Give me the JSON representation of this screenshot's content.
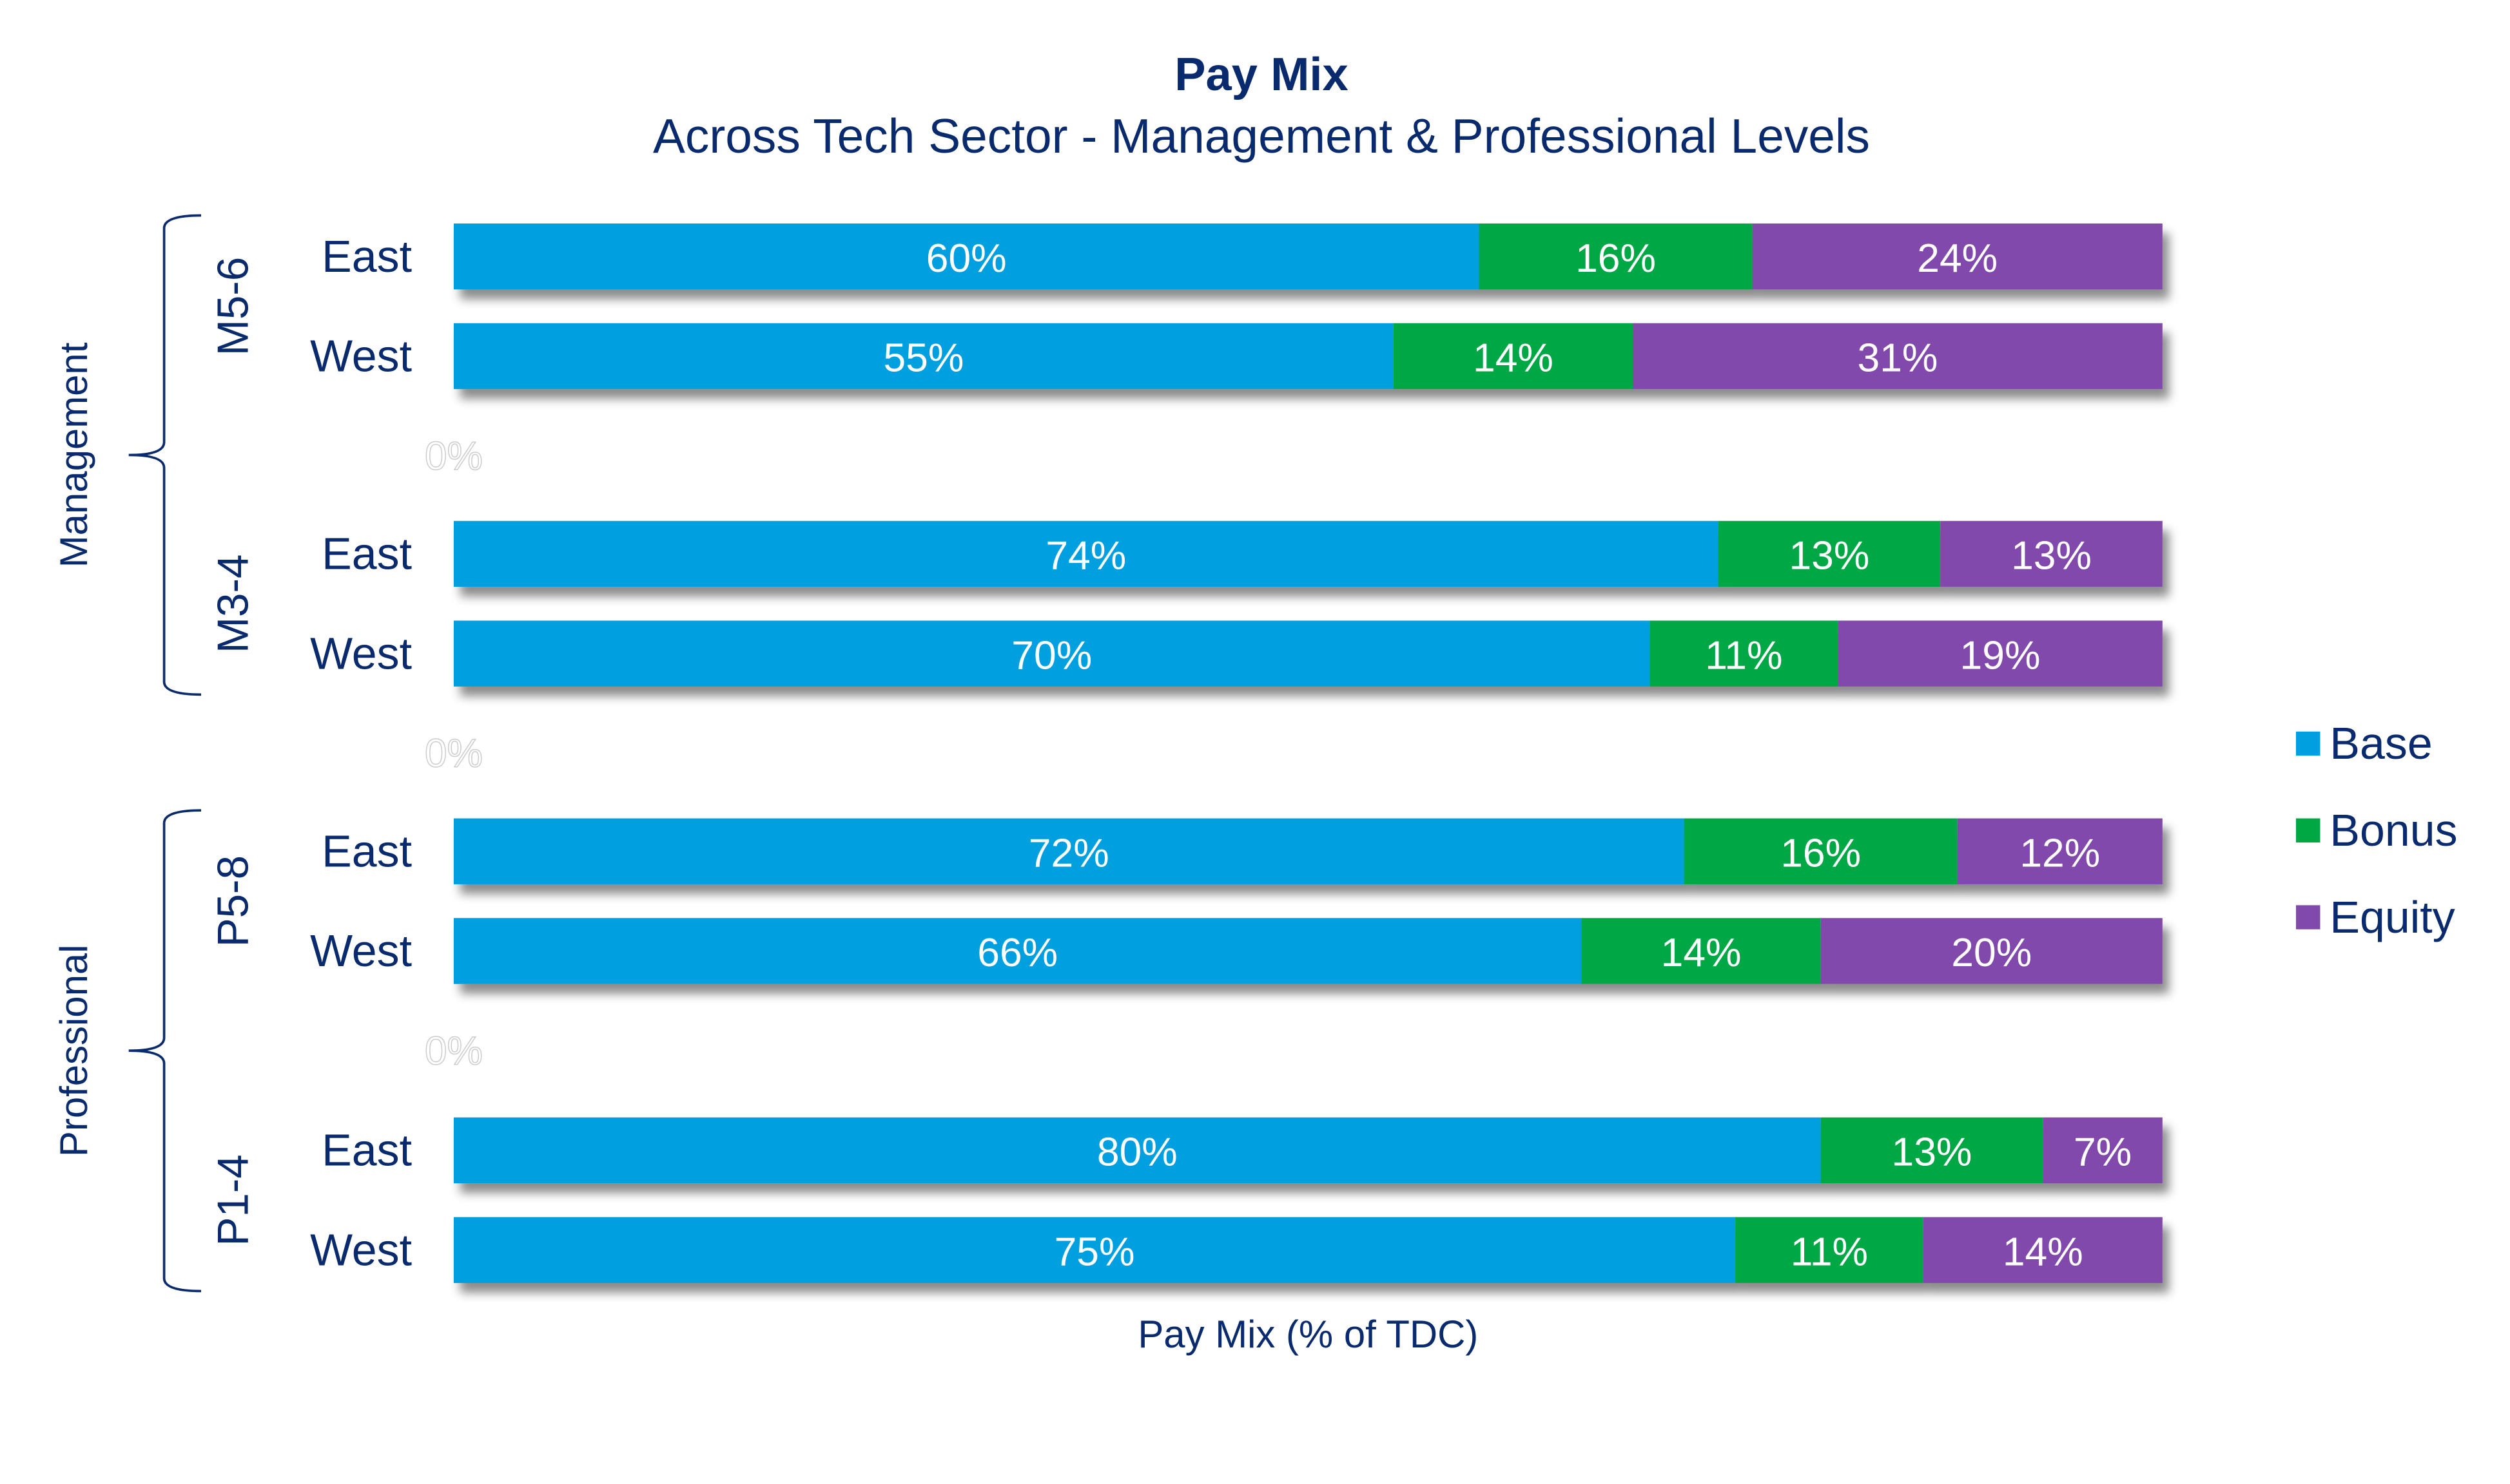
{
  "chart_data": {
    "type": "bar",
    "orientation": "horizontal",
    "stacked": true,
    "title": "Pay Mix",
    "subtitle": "Across Tech Sector - Management & Professional Levels",
    "xlabel": "Pay Mix (% of TDC)",
    "xlim": [
      0,
      100
    ],
    "grid": false,
    "legend_position": "right",
    "series_colors": {
      "Base": "#009fdf",
      "Bonus": "#00a844",
      "Equity": "#8249ad"
    },
    "legend": [
      "Base",
      "Bonus",
      "Equity"
    ],
    "groups": [
      {
        "name": "Management",
        "levels": [
          {
            "name": "M5-6",
            "rows": [
              {
                "region": "East",
                "values": [
                  60,
                  16,
                  24
                ],
                "labels": [
                  "60%",
                  "16%",
                  "24%"
                ]
              },
              {
                "region": "West",
                "values": [
                  55,
                  14,
                  31
                ],
                "labels": [
                  "55%",
                  "14%",
                  "31%"
                ]
              }
            ]
          },
          {
            "name": "M3-4",
            "rows": [
              {
                "region": "East",
                "values": [
                  74,
                  13,
                  13
                ],
                "labels": [
                  "74%",
                  "13%",
                  "13%"
                ]
              },
              {
                "region": "West",
                "values": [
                  70,
                  11,
                  19
                ],
                "labels": [
                  "70%",
                  "11%",
                  "19%"
                ]
              }
            ]
          }
        ]
      },
      {
        "name": "Professional",
        "levels": [
          {
            "name": "P5-8",
            "rows": [
              {
                "region": "East",
                "values": [
                  72,
                  16,
                  12
                ],
                "labels": [
                  "72%",
                  "16%",
                  "12%"
                ]
              },
              {
                "region": "West",
                "values": [
                  66,
                  14,
                  20
                ],
                "labels": [
                  "66%",
                  "14%",
                  "20%"
                ]
              }
            ]
          },
          {
            "name": "P1-4",
            "rows": [
              {
                "region": "East",
                "values": [
                  80,
                  13,
                  7
                ],
                "labels": [
                  "80%",
                  "13%",
                  "7%"
                ]
              },
              {
                "region": "West",
                "values": [
                  75,
                  11,
                  14
                ],
                "labels": [
                  "75%",
                  "11%",
                  "14%"
                ]
              }
            ]
          }
        ]
      }
    ],
    "spacer_label": "0%"
  }
}
